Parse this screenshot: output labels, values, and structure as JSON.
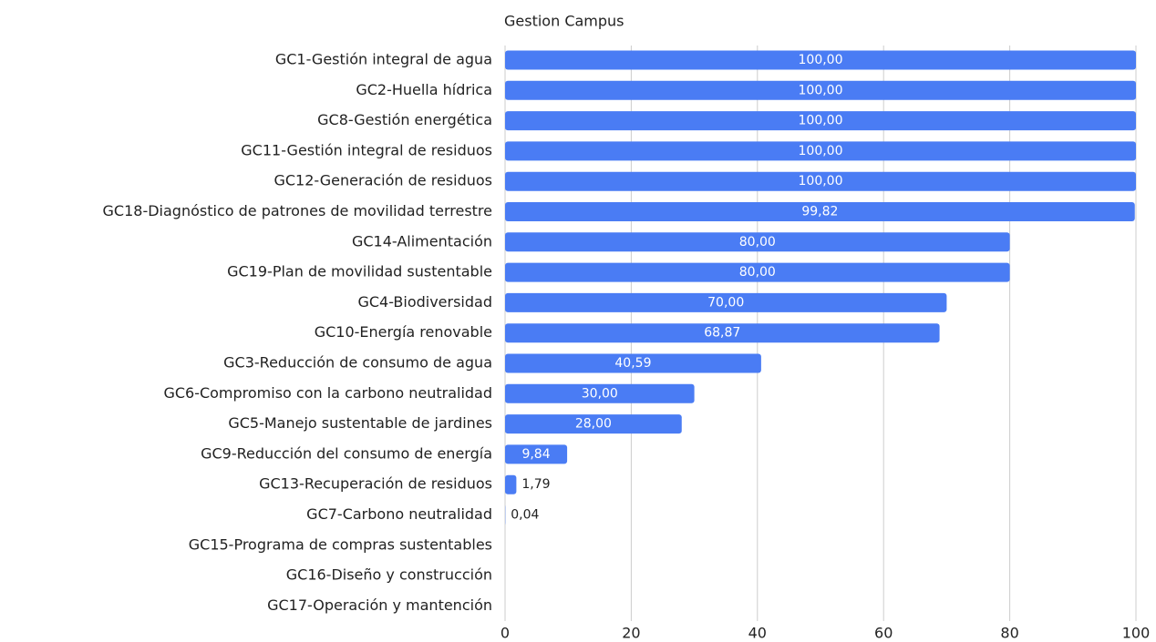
{
  "chart_data": {
    "type": "bar",
    "orientation": "horizontal",
    "title": "Gestion Campus",
    "categories": [
      "GC1-Gestión integral de agua",
      "GC2-Huella hídrica",
      "GC8-Gestión energética",
      "GC11-Gestión integral de residuos",
      "GC12-Generación de residuos",
      "GC18-Diagnóstico de patrones de movilidad terrestre",
      "GC14-Alimentación",
      "GC19-Plan de movilidad sustentable",
      "GC4-Biodiversidad",
      "GC10-Energía renovable",
      "GC3-Reducción de consumo de agua",
      "GC6-Compromiso con la carbono neutralidad",
      "GC5-Manejo sustentable de jardines",
      "GC9-Reducción del consumo de energía",
      "GC13-Recuperación de residuos",
      "GC7-Carbono neutralidad",
      "GC15-Programa de compras sustentables",
      "GC16-Diseño y construcción",
      "GC17-Operación y mantención"
    ],
    "values": [
      100,
      100,
      100,
      100,
      100,
      99.82,
      80,
      80,
      70,
      68.87,
      40.59,
      30,
      28,
      9.84,
      1.79,
      0.04,
      null,
      null,
      null
    ],
    "value_labels": [
      "100,00",
      "100,00",
      "100,00",
      "100,00",
      "100,00",
      "99,82",
      "80,00",
      "80,00",
      "70,00",
      "68,87",
      "40,59",
      "30,00",
      "28,00",
      "9,84",
      "1,79",
      "0,04",
      null,
      null,
      null
    ],
    "color": "#4a7cf4",
    "xlim": [
      0,
      100
    ],
    "xticks": [
      0,
      20,
      40,
      60,
      80,
      100
    ],
    "grid": true
  }
}
